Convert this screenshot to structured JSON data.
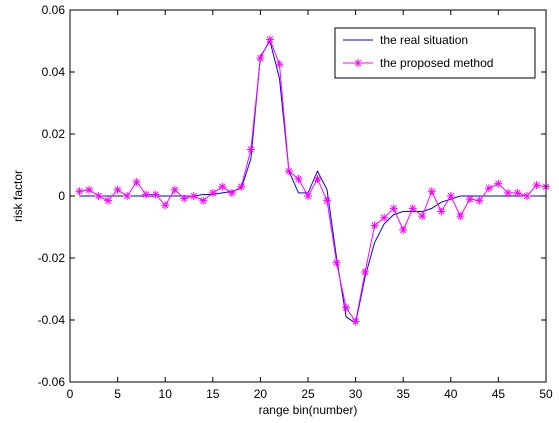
{
  "chart_data": {
    "type": "line",
    "title": "",
    "xlabel": "range bin(number)",
    "ylabel": "risk factor",
    "xlim": [
      0,
      50
    ],
    "ylim": [
      -0.06,
      0.06
    ],
    "xticks": [
      0,
      5,
      10,
      15,
      20,
      25,
      30,
      35,
      40,
      45,
      50
    ],
    "yticks": [
      -0.06,
      -0.04,
      -0.02,
      0,
      0.02,
      0.04,
      0.06
    ],
    "xtick_labels": [
      "0",
      "5",
      "10",
      "15",
      "20",
      "25",
      "30",
      "35",
      "40",
      "45",
      "50"
    ],
    "ytick_labels": [
      "-0.06",
      "-0.04",
      "-0.02",
      "0",
      "0.02",
      "0.04",
      "0.06"
    ],
    "grid": false,
    "legend_position": "top-right",
    "series": [
      {
        "name": "the real situation",
        "color": "#0000ff",
        "marker": "none",
        "x": [
          1,
          2,
          3,
          4,
          5,
          6,
          7,
          8,
          9,
          10,
          11,
          12,
          13,
          14,
          15,
          16,
          17,
          18,
          19,
          20,
          21,
          22,
          23,
          24,
          25,
          26,
          27,
          28,
          29,
          30,
          31,
          32,
          33,
          34,
          35,
          36,
          37,
          38,
          39,
          40,
          41,
          42,
          43,
          44,
          45,
          46,
          47,
          48,
          49,
          50
        ],
        "y": [
          0,
          0,
          0,
          0,
          0,
          0,
          0,
          0,
          0,
          0,
          0,
          0,
          0,
          0.0005,
          0.0005,
          0.001,
          0.0015,
          0.0025,
          0.012,
          0.045,
          0.05,
          0.038,
          0.008,
          0.001,
          0.001,
          0.008,
          0.002,
          -0.02,
          -0.039,
          -0.041,
          -0.026,
          -0.015,
          -0.009,
          -0.006,
          -0.005,
          -0.005,
          -0.005,
          -0.004,
          -0.002,
          -0.001,
          0,
          0,
          0,
          0,
          0,
          0,
          0,
          0,
          0,
          0
        ]
      },
      {
        "name": "the proposed method",
        "color": "#ff00ff",
        "marker": "asterisk",
        "x": [
          1,
          2,
          3,
          4,
          5,
          6,
          7,
          8,
          9,
          10,
          11,
          12,
          13,
          14,
          15,
          16,
          17,
          18,
          19,
          20,
          21,
          22,
          23,
          24,
          25,
          26,
          27,
          28,
          29,
          30,
          31,
          32,
          33,
          34,
          35,
          36,
          37,
          38,
          39,
          40,
          41,
          42,
          43,
          44,
          45,
          46,
          47,
          48,
          49,
          50
        ],
        "y": [
          0.0015,
          0.002,
          0,
          -0.0015,
          0.002,
          0,
          0.0045,
          0.0005,
          0.0005,
          -0.003,
          0.002,
          -0.0008,
          0,
          -0.0015,
          0.001,
          0.003,
          0.001,
          0.003,
          0.015,
          0.0445,
          0.0505,
          0.0425,
          0.008,
          0.0055,
          0,
          0.0055,
          -0.0015,
          -0.0215,
          -0.036,
          -0.0405,
          -0.0245,
          -0.0095,
          -0.007,
          -0.004,
          -0.011,
          -0.004,
          -0.0065,
          0.0015,
          -0.005,
          0,
          -0.0065,
          -0.001,
          -0.0015,
          0.0025,
          0.004,
          0.001,
          0.001,
          0,
          0.0035,
          0.003
        ]
      }
    ]
  }
}
